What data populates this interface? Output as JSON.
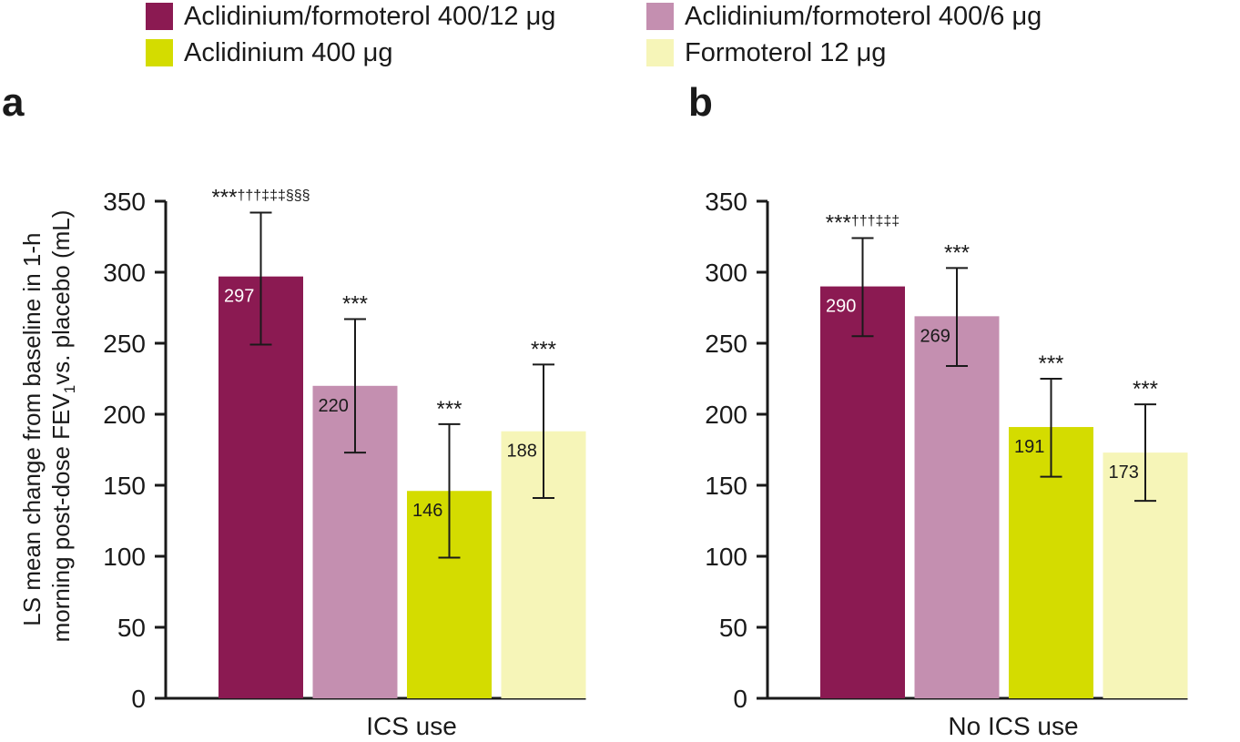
{
  "legend": [
    {
      "label": "Aclidinium/formoterol 400/12 μg",
      "color": "#8b1a52"
    },
    {
      "label": "Aclidinium/formoterol 400/6 μg",
      "color": "#c48fb0"
    },
    {
      "label": "Aclidinium 400 μg",
      "color": "#d4dc00"
    },
    {
      "label": "Formoterol 12 μg",
      "color": "#f6f5b8"
    }
  ],
  "y_axis_label": {
    "line1": "LS mean change from baseline in 1-h",
    "line2_pre": "morning post-dose FEV",
    "line2_sub": "1",
    "line2_post": "vs. placebo (mL)"
  },
  "chart_data": [
    {
      "type": "bar",
      "panel_label": "a",
      "title": "",
      "xlabel": "ICS use",
      "ylabel": "LS mean change from baseline in 1-h morning post-dose FEV1 vs. placebo (mL)",
      "ylim": [
        0,
        350
      ],
      "yticks": [
        0,
        50,
        100,
        150,
        200,
        250,
        300,
        350
      ],
      "series": [
        {
          "name": "Aclidinium/formoterol 400/12 μg",
          "value": 297,
          "value_label": "297",
          "err_low": 249,
          "err_high": 342,
          "annotation": "***†††‡‡‡§§§"
        },
        {
          "name": "Aclidinium/formoterol 400/6 μg",
          "value": 220,
          "value_label": "220",
          "err_low": 173,
          "err_high": 267,
          "annotation": "***"
        },
        {
          "name": "Aclidinium 400 μg",
          "value": 146,
          "value_label": "146",
          "err_low": 99,
          "err_high": 193,
          "annotation": "***"
        },
        {
          "name": "Formoterol 12 μg",
          "value": 188,
          "value_label": "188",
          "err_low": 141,
          "err_high": 235,
          "annotation": "***"
        }
      ]
    },
    {
      "type": "bar",
      "panel_label": "b",
      "title": "",
      "xlabel": "No ICS use",
      "ylabel": "",
      "ylim": [
        0,
        350
      ],
      "yticks": [
        0,
        50,
        100,
        150,
        200,
        250,
        300,
        350
      ],
      "series": [
        {
          "name": "Aclidinium/formoterol 400/12 μg",
          "value": 290,
          "value_label": "290",
          "err_low": 255,
          "err_high": 324,
          "annotation": "***†††‡‡‡"
        },
        {
          "name": "Aclidinium/formoterol 400/6 μg",
          "value": 269,
          "value_label": "269",
          "err_low": 234,
          "err_high": 303,
          "annotation": "***"
        },
        {
          "name": "Aclidinium 400 μg",
          "value": 191,
          "value_label": "191",
          "err_low": 156,
          "err_high": 225,
          "annotation": "***"
        },
        {
          "name": "Formoterol 12 μg",
          "value": 173,
          "value_label": "173",
          "err_low": 139,
          "err_high": 207,
          "annotation": "***"
        }
      ]
    }
  ]
}
